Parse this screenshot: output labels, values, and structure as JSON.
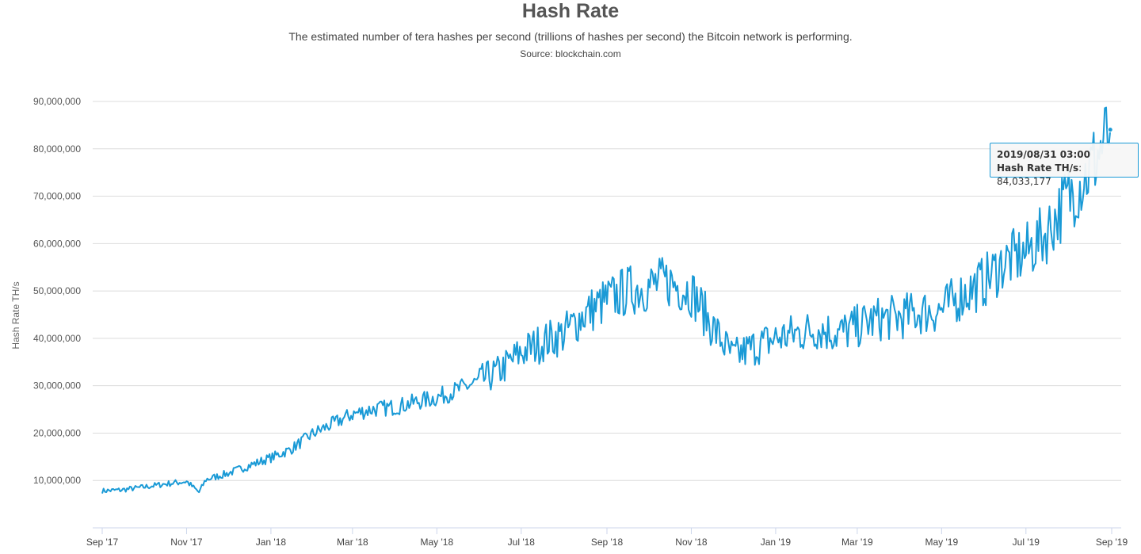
{
  "chart_data": {
    "type": "line",
    "title": "Hash Rate",
    "subtitle": "The estimated number of tera hashes per second (trillions of hashes per second) the Bitcoin network is performing.",
    "source": "Source: blockchain.com",
    "xlabel": "",
    "ylabel": "Hash Rate TH/s",
    "ylim": [
      0,
      90000000
    ],
    "xlim": [
      "2017-09-01",
      "2019-09-01"
    ],
    "yticks": [
      "10,000,000",
      "20,000,000",
      "30,000,000",
      "40,000,000",
      "50,000,000",
      "60,000,000",
      "70,000,000",
      "80,000,000",
      "90,000,000"
    ],
    "xticks": [
      "Sep '17",
      "Nov '17",
      "Jan '18",
      "Mar '18",
      "May '18",
      "Jul '18",
      "Sep '18",
      "Nov '18",
      "Jan '19",
      "Mar '19",
      "May '19",
      "Jul '19",
      "Sep '19"
    ],
    "grid": true,
    "legend": "none",
    "color": "#1a9ad6",
    "series": [
      {
        "name": "Hash Rate TH/s",
        "x": [
          "2017-09-01",
          "2017-09-15",
          "2017-10-01",
          "2017-10-15",
          "2017-11-01",
          "2017-11-10",
          "2017-11-15",
          "2017-12-01",
          "2017-12-15",
          "2018-01-01",
          "2018-01-15",
          "2018-02-01",
          "2018-02-15",
          "2018-03-01",
          "2018-03-15",
          "2018-04-01",
          "2018-04-15",
          "2018-05-01",
          "2018-05-15",
          "2018-06-01",
          "2018-06-15",
          "2018-07-01",
          "2018-07-15",
          "2018-08-01",
          "2018-08-15",
          "2018-09-01",
          "2018-09-15",
          "2018-10-01",
          "2018-10-15",
          "2018-11-01",
          "2018-11-15",
          "2018-12-01",
          "2018-12-15",
          "2019-01-01",
          "2019-01-15",
          "2019-02-01",
          "2019-02-15",
          "2019-03-01",
          "2019-03-15",
          "2019-04-01",
          "2019-04-15",
          "2019-05-01",
          "2019-05-15",
          "2019-06-01",
          "2019-06-15",
          "2019-07-01",
          "2019-07-15",
          "2019-08-01",
          "2019-08-15",
          "2019-08-31"
        ],
        "y": [
          7800000,
          8000000,
          8600000,
          9200000,
          9800000,
          7500000,
          10200000,
          11500000,
          13000000,
          14800000,
          16500000,
          20000000,
          22000000,
          24000000,
          25000000,
          25500000,
          26500000,
          27500000,
          29000000,
          31000000,
          33000000,
          37000000,
          39000000,
          41000000,
          45000000,
          48000000,
          50000000,
          51000000,
          52000000,
          50000000,
          43000000,
          36000000,
          38000000,
          40000000,
          41000000,
          42000000,
          41000000,
          42500000,
          44000000,
          44500000,
          45500000,
          46000000,
          49000000,
          52000000,
          56000000,
          58000000,
          62000000,
          70000000,
          75000000,
          84033177
        ]
      }
    ],
    "tooltip": {
      "date": "2019/08/31 03:00",
      "label": "Hash Rate TH/s",
      "value": "84,033,177"
    }
  }
}
